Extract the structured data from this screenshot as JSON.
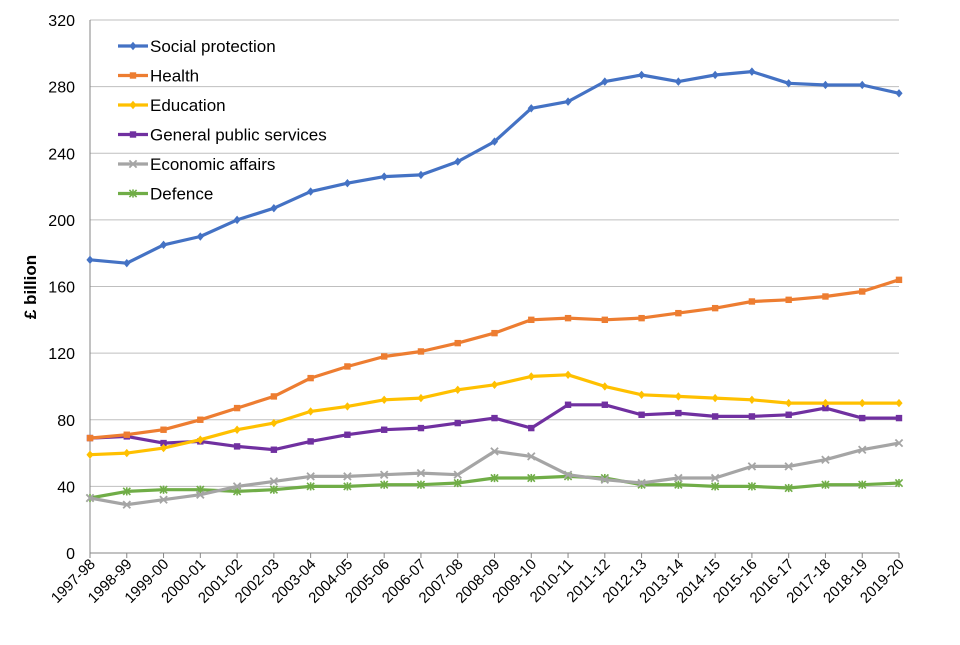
{
  "chart_data": {
    "type": "line",
    "title": "",
    "xlabel": "",
    "ylabel": "£ billion",
    "ylim": [
      0,
      320
    ],
    "yticks": [
      0,
      40,
      80,
      120,
      160,
      200,
      240,
      280,
      320
    ],
    "grid": "horizontal",
    "legend_position": "top-left",
    "categories": [
      "1997-98",
      "1998-99",
      "1999-00",
      "2000-01",
      "2001-02",
      "2002-03",
      "2003-04",
      "2004-05",
      "2005-06",
      "2006-07",
      "2007-08",
      "2008-09",
      "2009-10",
      "2010-11",
      "2011-12",
      "2012-13",
      "2013-14",
      "2014-15",
      "2015-16",
      "2016-17",
      "2017-18",
      "2018-19",
      "2019-20"
    ],
    "series": [
      {
        "name": "Social protection",
        "color": "#4472C4",
        "marker": "diamond",
        "values": [
          176,
          174,
          185,
          190,
          200,
          207,
          217,
          222,
          226,
          227,
          235,
          247,
          267,
          271,
          283,
          287,
          283,
          287,
          289,
          282,
          281,
          281,
          276
        ]
      },
      {
        "name": "Health",
        "color": "#ED7D31",
        "marker": "square",
        "values": [
          69,
          71,
          74,
          80,
          87,
          94,
          105,
          112,
          118,
          121,
          126,
          132,
          140,
          141,
          140,
          141,
          144,
          147,
          151,
          152,
          154,
          157,
          164
        ]
      },
      {
        "name": "Education",
        "color": "#FFC000",
        "marker": "diamond",
        "values": [
          59,
          60,
          63,
          68,
          74,
          78,
          85,
          88,
          92,
          93,
          98,
          101,
          106,
          107,
          100,
          95,
          94,
          93,
          92,
          90,
          90,
          90,
          90
        ]
      },
      {
        "name": "General public services",
        "color": "#7030A0",
        "marker": "square",
        "values": [
          69,
          70,
          66,
          67,
          64,
          62,
          67,
          71,
          74,
          75,
          78,
          81,
          75,
          89,
          89,
          83,
          84,
          82,
          82,
          83,
          87,
          81,
          81
        ]
      },
      {
        "name": "Economic affairs",
        "color": "#A5A5A5",
        "marker": "x",
        "values": [
          33,
          29,
          32,
          35,
          40,
          43,
          46,
          46,
          47,
          48,
          47,
          61,
          58,
          47,
          44,
          42,
          45,
          45,
          52,
          52,
          56,
          62,
          66
        ]
      },
      {
        "name": "Defence",
        "color": "#70AD47",
        "marker": "asterisk",
        "values": [
          33,
          37,
          38,
          38,
          37,
          38,
          40,
          40,
          41,
          41,
          42,
          45,
          45,
          46,
          45,
          41,
          41,
          40,
          40,
          39,
          41,
          41,
          42
        ]
      }
    ]
  }
}
